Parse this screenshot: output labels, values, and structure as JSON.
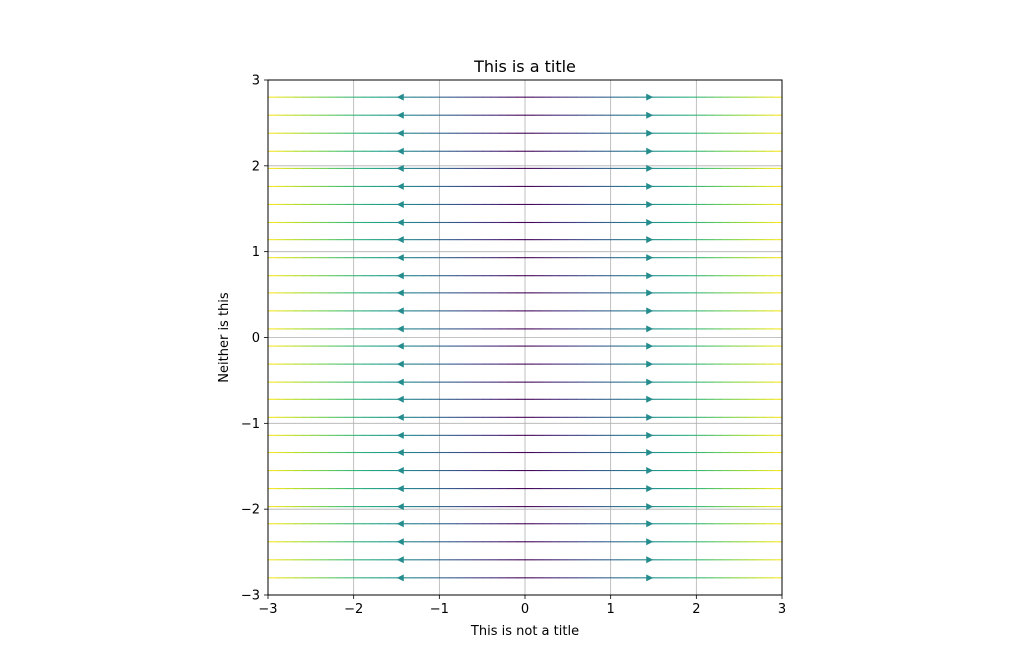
{
  "chart_data": {
    "type": "streamplot",
    "title": "This is a title",
    "xlabel": "This is not a title",
    "ylabel": "Neither is this",
    "xlim": [
      -3,
      3
    ],
    "ylim": [
      -3,
      3
    ],
    "x_ticks": [
      "−3",
      "−2",
      "−1",
      "0",
      "1",
      "2",
      "3"
    ],
    "y_ticks": [
      "−3",
      "−2",
      "−1",
      "0",
      "1",
      "2",
      "3"
    ],
    "x_tick_values": [
      -3,
      -2,
      -1,
      0,
      1,
      2,
      3
    ],
    "y_tick_values": [
      -3,
      -2,
      -1,
      0,
      1,
      2,
      3
    ],
    "grid": true,
    "field": {
      "u": "x",
      "v": "0"
    },
    "colormap": "viridis",
    "color_by": "speed",
    "streamline_y": [
      2.8,
      2.59,
      2.38,
      2.17,
      1.97,
      1.76,
      1.55,
      1.34,
      1.14,
      0.93,
      0.72,
      0.52,
      0.31,
      0.1,
      -0.1,
      -0.31,
      -0.52,
      -0.72,
      -0.93,
      -1.14,
      -1.34,
      -1.55,
      -1.76,
      -1.97,
      -2.17,
      -2.38,
      -2.59,
      -2.8
    ],
    "arrow_x": [
      -1.45,
      1.45
    ]
  }
}
